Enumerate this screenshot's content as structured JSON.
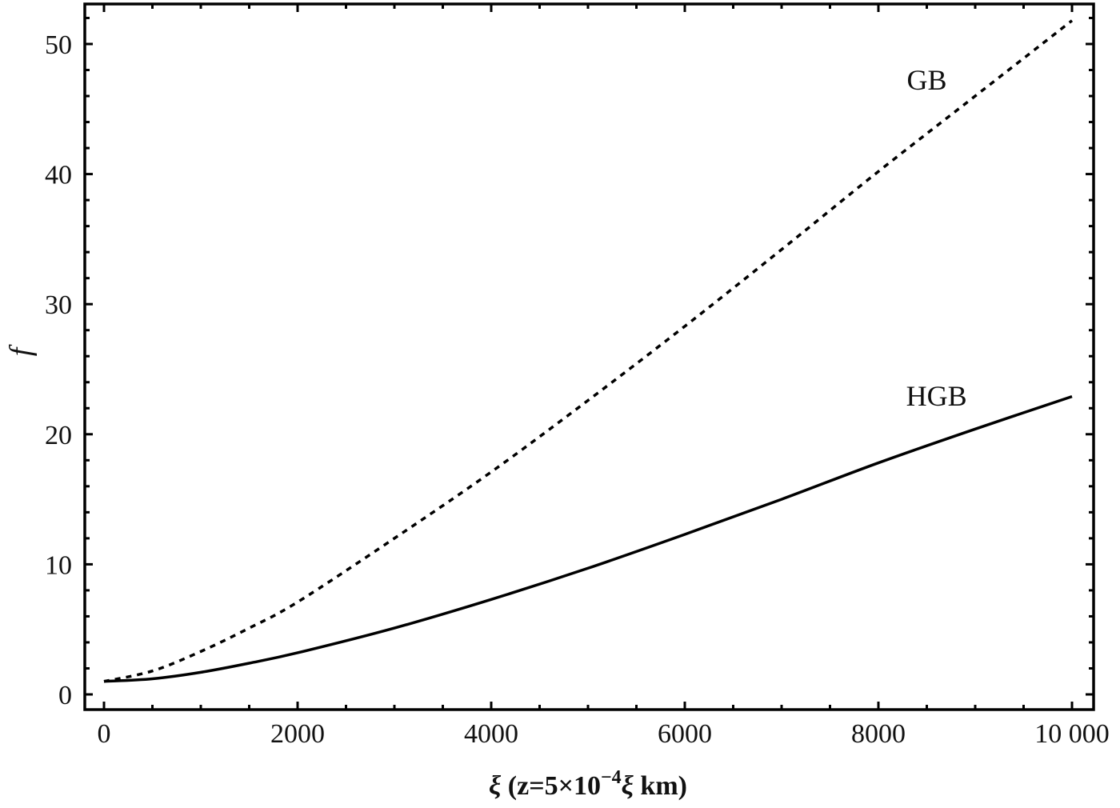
{
  "chart_data": {
    "type": "line",
    "title": "",
    "xlabel": "ξ (z=5×10⁻⁴ξ km)",
    "xlabel_parts": {
      "xi": "ξ",
      "prefix": " (z=5×10",
      "sup": "−4",
      "suffix_xi": "ξ",
      "suffix": " km)"
    },
    "ylabel": "f",
    "xlim": [
      -200,
      10200
    ],
    "ylim": [
      -1.2,
      53
    ],
    "x_ticks": [
      0,
      2000,
      4000,
      6000,
      8000,
      10000
    ],
    "x_tick_labels": [
      "0",
      "2000",
      "4000",
      "6000",
      "8000",
      "10 000"
    ],
    "y_ticks": [
      0,
      10,
      20,
      30,
      40,
      50
    ],
    "y_tick_labels": [
      "0",
      "10",
      "20",
      "30",
      "40",
      "50"
    ],
    "grid": false,
    "legend": "inline labels",
    "x": [
      0,
      500,
      1000,
      1500,
      2000,
      3000,
      4000,
      5000,
      6000,
      7000,
      8000,
      9000,
      10000
    ],
    "series": [
      {
        "name": "GB",
        "style": "dashed",
        "values": [
          1.0,
          1.8,
          3.3,
          5.1,
          7.1,
          12.0,
          17.1,
          22.6,
          28.3,
          34.2,
          40.2,
          46.0,
          51.8
        ]
      },
      {
        "name": "HGB",
        "style": "solid",
        "values": [
          1.0,
          1.2,
          1.7,
          2.4,
          3.2,
          5.1,
          7.3,
          9.7,
          12.3,
          15.0,
          17.8,
          20.4,
          22.9
        ]
      }
    ],
    "annotations": [
      {
        "text": "GB",
        "x": 8500,
        "y": 46.5
      },
      {
        "text": "HGB",
        "x": 8600,
        "y": 22.2
      }
    ]
  }
}
